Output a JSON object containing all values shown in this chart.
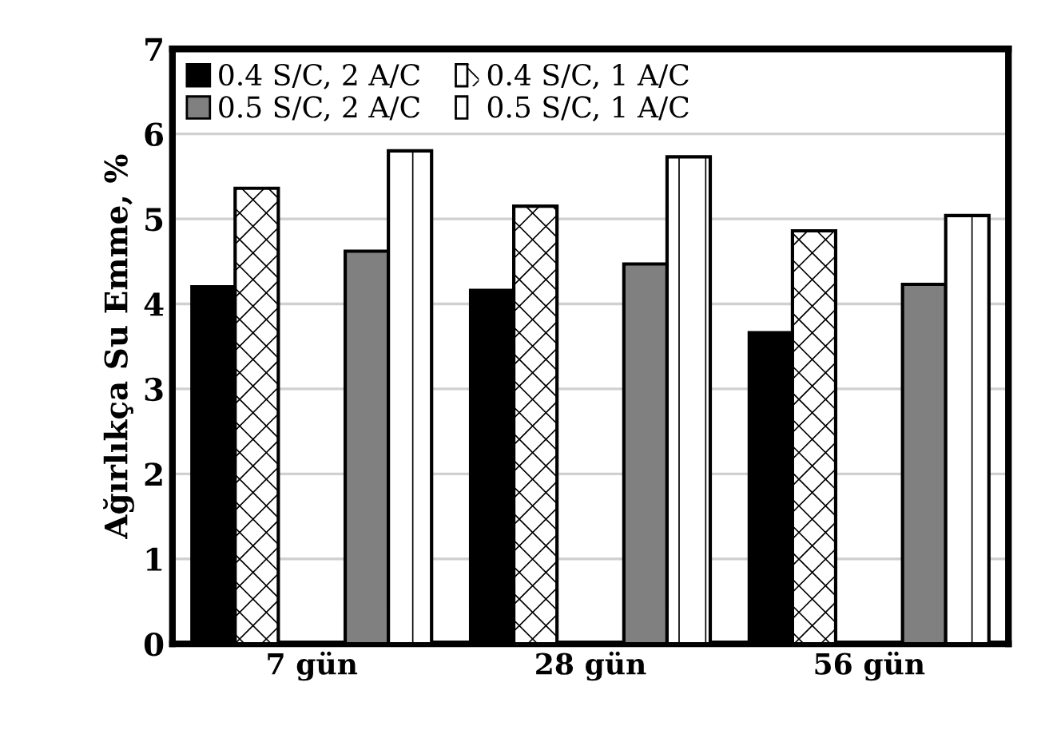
{
  "chart_data": {
    "type": "bar",
    "ylabel": "Ağırlıkça Su Emme, %",
    "categories": [
      "7 gün",
      "28 gün",
      "56 gün"
    ],
    "series": [
      {
        "name": "0.4 S/C, 2 A/C",
        "color": "#000000",
        "values": [
          4.2,
          4.16,
          3.66
        ]
      },
      {
        "name": "0.4 S/C, 1 A/C",
        "color": "#ffffff",
        "values": [
          5.36,
          5.15,
          4.86
        ]
      },
      {
        "name": "0.5 S/C, 2 A/C",
        "color": "#808080",
        "values": [
          4.62,
          4.47,
          4.23
        ]
      },
      {
        "name": "0.5 S/C, 1 A/C",
        "color": "#ffffff",
        "values": [
          5.8,
          5.73,
          5.04
        ]
      }
    ],
    "ylim": [
      0,
      7
    ],
    "yticks": [
      0,
      1,
      2,
      3,
      4,
      5,
      6,
      7
    ],
    "grid": "y",
    "legend": "top left"
  }
}
